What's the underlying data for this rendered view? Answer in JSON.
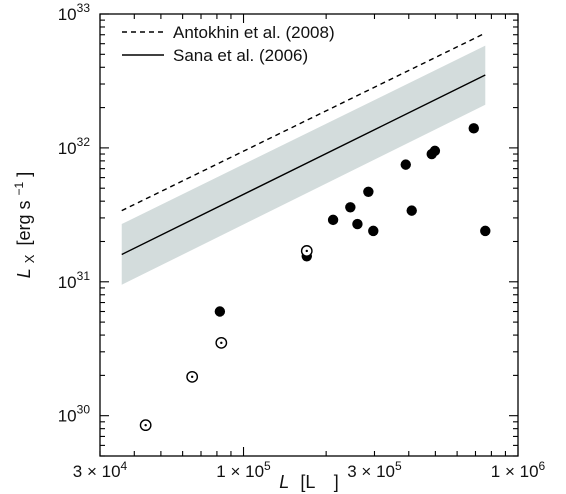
{
  "chart_data": {
    "type": "scatter",
    "xscale": "log",
    "yscale": "log",
    "xlim": [
      30000,
      1000000
    ],
    "ylim": [
      5e+29,
      1e+33
    ],
    "xlabel_main": "L",
    "xlabel_unit": "[L",
    "xlabel_unit_close": "]",
    "ylabel_main": "L",
    "ylabel_sub": "X",
    "ylabel_unit": "[erg s",
    "ylabel_unit_exp": "−1",
    "ylabel_unit_close": "]",
    "x_ticks": [
      {
        "value": 30000,
        "mantissa": "3 × 10",
        "exp": "4"
      },
      {
        "value": 100000,
        "mantissa": "1 × 10",
        "exp": "5"
      },
      {
        "value": 300000,
        "mantissa": "3 × 10",
        "exp": "5"
      },
      {
        "value": 1000000,
        "mantissa": "1 × 10",
        "exp": "6"
      }
    ],
    "y_ticks": [
      {
        "value": 1e+30,
        "base": "10",
        "exp": "30"
      },
      {
        "value": 1e+31,
        "base": "10",
        "exp": "31"
      },
      {
        "value": 1e+32,
        "base": "10",
        "exp": "32"
      },
      {
        "value": 1e+33,
        "base": "10",
        "exp": "33"
      }
    ],
    "legend": {
      "position": "top-left",
      "items": [
        {
          "label": "Antokhin et al. (2008)",
          "style": "dashed"
        },
        {
          "label": "Sana et al. (2006)",
          "style": "solid"
        }
      ]
    },
    "lines": [
      {
        "name": "Antokhin et al. (2008)",
        "style": "dashed",
        "x": [
          36000,
          760000
        ],
        "y": [
          3.4e+31,
          7.2e+32
        ]
      },
      {
        "name": "Sana et al. (2006)",
        "style": "solid",
        "x": [
          36000,
          760000
        ],
        "y": [
          1.6e+31,
          3.5e+32
        ]
      }
    ],
    "band": {
      "x": [
        36000,
        760000
      ],
      "y_low": [
        9.5e+30,
        2.1e+32
      ],
      "y_high": [
        2.7e+31,
        5.8e+32
      ],
      "color": "#d3dcdc"
    },
    "series": [
      {
        "marker": "filled-circle",
        "points": [
          {
            "x": 82000,
            "y": 6e+30
          },
          {
            "x": 170000,
            "y": 1.55e+31
          },
          {
            "x": 212000,
            "y": 2.9e+31
          },
          {
            "x": 245000,
            "y": 3.6e+31
          },
          {
            "x": 260000,
            "y": 2.7e+31
          },
          {
            "x": 285000,
            "y": 4.7e+31
          },
          {
            "x": 297000,
            "y": 2.4e+31
          },
          {
            "x": 390000,
            "y": 7.5e+31
          },
          {
            "x": 410000,
            "y": 3.4e+31
          },
          {
            "x": 485000,
            "y": 9e+31
          },
          {
            "x": 498000,
            "y": 9.5e+31
          },
          {
            "x": 690000,
            "y": 1.4e+32
          },
          {
            "x": 760000,
            "y": 2.4e+31
          }
        ]
      },
      {
        "marker": "open-circle",
        "points": [
          {
            "x": 44000,
            "y": 8.5e+29
          },
          {
            "x": 65000,
            "y": 1.95e+30
          },
          {
            "x": 83000,
            "y": 3.5e+30
          },
          {
            "x": 170000,
            "y": 1.7e+31
          }
        ]
      }
    ],
    "colors": {
      "ink": "#000000",
      "band": "#d3dcdc"
    }
  }
}
